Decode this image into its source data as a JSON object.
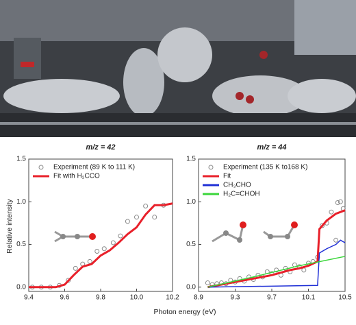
{
  "figure": {
    "x_label": "Photon energy (eV)",
    "y_label": "Relative intensity"
  },
  "chart_data": [
    {
      "type": "line",
      "title": "m/z = 42",
      "xlim": [
        9.4,
        10.2
      ],
      "xticks": [
        9.4,
        9.6,
        9.8,
        {
          "value": 10,
          "label": "10.0"
        },
        10.2
      ],
      "ylim": [
        -0.05,
        1.5
      ],
      "yticks": [
        {
          "value": 0,
          "label": "0.0"
        },
        0.5,
        {
          "value": 1,
          "label": "1.0"
        },
        1.5
      ],
      "series": [
        {
          "name": "Experiment (89 K to 111 K)",
          "kind": "scatter",
          "color": "#8a8a8a",
          "x": [
            9.42,
            9.47,
            9.52,
            9.57,
            9.62,
            9.66,
            9.7,
            9.74,
            9.78,
            9.82,
            9.87,
            9.91,
            9.95,
            10.0,
            10.05,
            10.1,
            10.15
          ],
          "values": [
            0,
            0,
            0,
            0.02,
            0.08,
            0.22,
            0.27,
            0.3,
            0.42,
            0.45,
            0.52,
            0.6,
            0.77,
            0.82,
            0.95,
            0.82,
            0.96
          ]
        },
        {
          "name": "Fit with H₂CCO",
          "kind": "line",
          "color": "#e8202a",
          "x": [
            9.4,
            9.45,
            9.5,
            9.55,
            9.6,
            9.65,
            9.7,
            9.75,
            9.8,
            9.85,
            9.9,
            9.95,
            10.0,
            10.05,
            10.1,
            10.15,
            10.2
          ],
          "values": [
            0,
            0,
            0,
            0,
            0.03,
            0.14,
            0.24,
            0.27,
            0.37,
            0.43,
            0.52,
            0.62,
            0.7,
            0.85,
            0.96,
            0.96,
            0.98
          ]
        }
      ]
    },
    {
      "type": "line",
      "title": "m/z = 44",
      "xlim": [
        8.9,
        10.5
      ],
      "xticks": [
        8.9,
        9.3,
        9.7,
        10.1,
        10.5
      ],
      "ylim": [
        -0.05,
        1.5
      ],
      "yticks": [
        {
          "value": 0,
          "label": "0.0"
        },
        0.5,
        {
          "value": 1,
          "label": "1.0"
        },
        1.5
      ],
      "series": [
        {
          "name": "Experiment (135 K to168 K)",
          "kind": "scatter",
          "color": "#8a8a8a",
          "x": [
            9.0,
            9.05,
            9.1,
            9.15,
            9.2,
            9.25,
            9.3,
            9.35,
            9.4,
            9.45,
            9.5,
            9.55,
            9.6,
            9.65,
            9.7,
            9.75,
            9.8,
            9.85,
            9.9,
            9.95,
            10.0,
            10.05,
            10.1,
            10.15,
            10.2,
            10.25,
            10.3,
            10.35,
            10.4,
            10.42,
            10.45,
            10.48
          ],
          "values": [
            0.05,
            0.03,
            0.04,
            0.05,
            0.04,
            0.08,
            0.06,
            0.1,
            0.07,
            0.12,
            0.09,
            0.14,
            0.12,
            0.18,
            0.16,
            0.2,
            0.14,
            0.22,
            0.18,
            0.26,
            0.24,
            0.2,
            0.28,
            0.3,
            0.35,
            0.72,
            0.75,
            0.88,
            0.55,
            0.99,
            1.0,
            0.92
          ]
        },
        {
          "name": "Fit",
          "kind": "line",
          "color": "#e8202a",
          "x": [
            9.0,
            9.1,
            9.2,
            9.3,
            9.4,
            9.5,
            9.6,
            9.7,
            9.8,
            9.9,
            10.0,
            10.1,
            10.2,
            10.22,
            10.3,
            10.4,
            10.5
          ],
          "values": [
            0.0,
            0.02,
            0.04,
            0.06,
            0.08,
            0.1,
            0.12,
            0.14,
            0.17,
            0.2,
            0.22,
            0.25,
            0.3,
            0.68,
            0.78,
            0.86,
            0.9
          ]
        },
        {
          "name": "CH₃CHO",
          "kind": "line",
          "color": "#1f2fd6",
          "x": [
            9.0,
            10.2,
            10.22,
            10.3,
            10.4,
            10.45,
            10.5
          ],
          "values": [
            0,
            0.02,
            0.4,
            0.45,
            0.5,
            0.55,
            0.52
          ]
        },
        {
          "name": "H₂C=CHOH",
          "kind": "line",
          "color": "#3ad63a",
          "x": [
            9.0,
            9.5,
            10.0,
            10.5
          ],
          "values": [
            0.0,
            0.12,
            0.25,
            0.36
          ]
        }
      ]
    }
  ]
}
